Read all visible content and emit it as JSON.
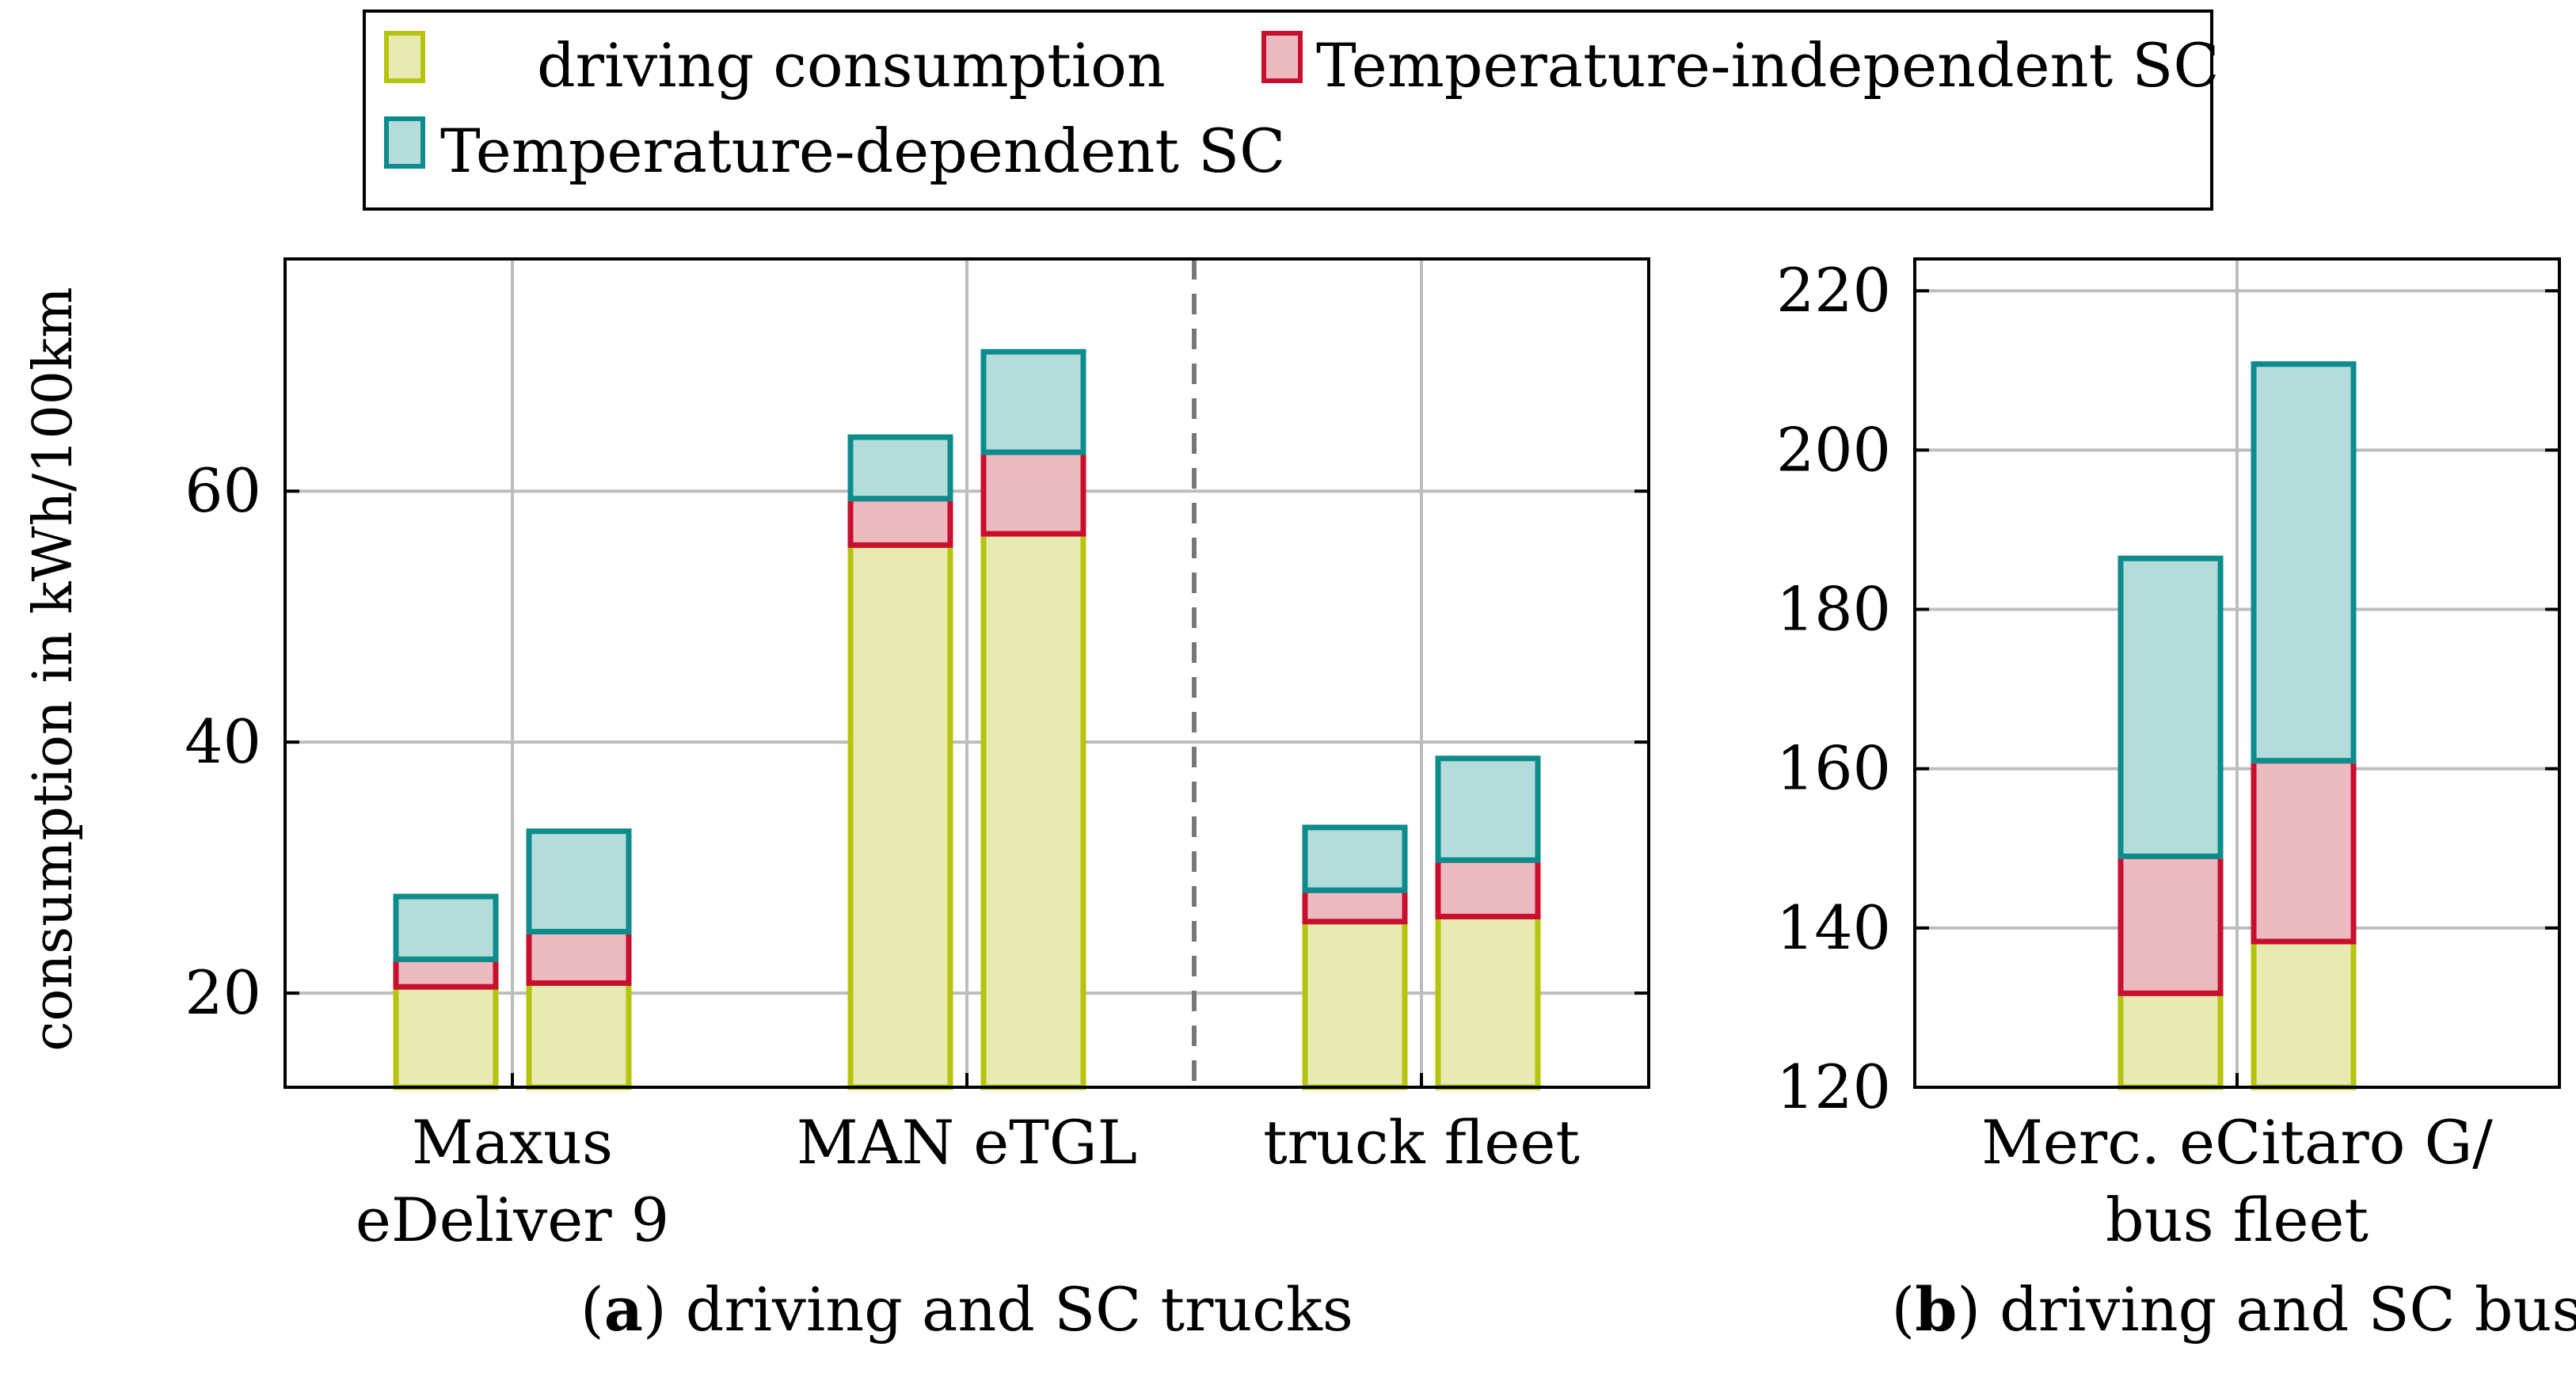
{
  "colors": {
    "driving": {
      "fill": "#e7eab1",
      "stroke": "#b5c40f"
    },
    "ti": {
      "fill": "#ecbac1",
      "stroke": "#c8102e"
    },
    "td": {
      "fill": "#b4dcdb",
      "stroke": "#0e8c8c"
    }
  },
  "legend": {
    "driving": "driving consumption",
    "ti": "Temperature-independent SC",
    "td": "Temperature-dependent SC"
  },
  "ylabel": "consumption in kWh/100km",
  "chart_data": [
    {
      "type": "bar",
      "stacked": true,
      "title": "(a) driving and SC trucks",
      "caption_letter": "a",
      "caption_rest": ") driving and SC trucks",
      "ylabel": "consumption in kWh/100km",
      "ylim": [
        12.5,
        78.5
      ],
      "yticks": [
        20,
        40,
        60
      ],
      "categories": [
        {
          "label": [
            "Maxus",
            "eDeliver 9"
          ]
        },
        {
          "label": [
            "MAN eTGL"
          ]
        },
        {
          "label": [
            "truck fleet"
          ]
        }
      ],
      "bars": [
        {
          "category": 0,
          "driving": 20.5,
          "ti": 22.7,
          "td": 27.7
        },
        {
          "category": 0,
          "driving": 20.8,
          "ti": 24.9,
          "td": 32.9
        },
        {
          "category": 1,
          "driving": 55.7,
          "ti": 59.4,
          "td": 64.3
        },
        {
          "category": 1,
          "driving": 56.6,
          "ti": 63.1,
          "td": 71.1
        },
        {
          "category": 2,
          "driving": 25.7,
          "ti": 28.2,
          "td": 33.2
        },
        {
          "category": 2,
          "driving": 26.1,
          "ti": 30.6,
          "td": 38.7
        }
      ],
      "separator_after_category": 1
    },
    {
      "type": "bar",
      "stacked": true,
      "title": "(b) driving and SC bus",
      "caption_letter": "b",
      "caption_rest": ") driving and SC bus",
      "ylim": [
        120,
        224
      ],
      "yticks": [
        120,
        140,
        160,
        180,
        200,
        220
      ],
      "categories": [
        {
          "label": [
            "Merc. eCitaro G/",
            "bus fleet"
          ]
        }
      ],
      "bars": [
        {
          "category": 0,
          "driving": 131.8,
          "ti": 149,
          "td": 186.4
        },
        {
          "category": 0,
          "driving": 138.3,
          "ti": 161,
          "td": 210.8
        }
      ]
    }
  ]
}
